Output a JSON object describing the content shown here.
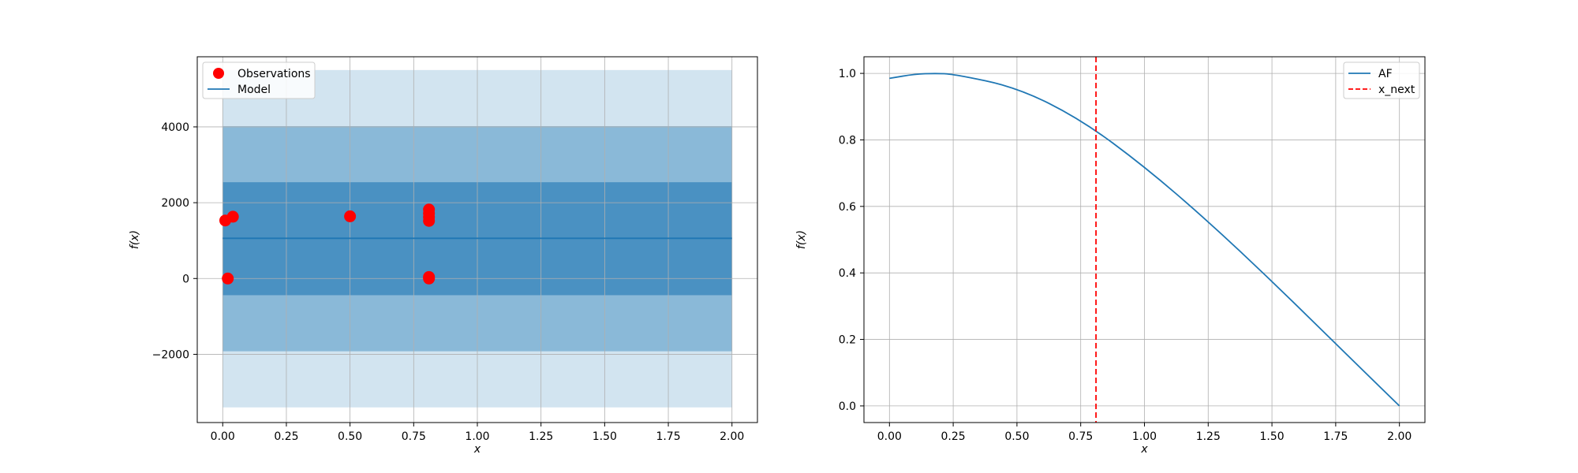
{
  "chart_data": [
    {
      "type": "scatter",
      "title": "",
      "xlabel": "x",
      "ylabel": "f(x)",
      "xlim": [
        -0.1,
        2.1
      ],
      "ylim": [
        -3800,
        5850
      ],
      "xticks": [
        0.0,
        0.25,
        0.5,
        0.75,
        1.0,
        1.25,
        1.5,
        1.75,
        2.0
      ],
      "xtick_labels": [
        "0.00",
        "0.25",
        "0.50",
        "0.75",
        "1.00",
        "1.25",
        "1.50",
        "1.75",
        "2.00"
      ],
      "yticks": [
        -2000,
        0,
        2000,
        4000
      ],
      "ytick_labels": [
        "−2000",
        "0",
        "2000",
        "4000"
      ],
      "grid": true,
      "legend_position": "top-left",
      "legend": [
        "Observations",
        "Model"
      ],
      "series": [
        {
          "name": "Observations",
          "kind": "scatter",
          "color": "#ff0000",
          "points": [
            [
              0.01,
              1530
            ],
            [
              0.04,
              1630
            ],
            [
              0.02,
              0
            ],
            [
              0.5,
              1640
            ],
            [
              0.81,
              1820
            ],
            [
              0.81,
              1720
            ],
            [
              0.81,
              1620
            ],
            [
              0.81,
              1520
            ],
            [
              0.81,
              40
            ],
            [
              0.81,
              0
            ]
          ]
        },
        {
          "name": "Model",
          "kind": "line",
          "color": "#1f77b4",
          "x": [
            0.0,
            2.0
          ],
          "y": [
            1060,
            1060
          ]
        }
      ],
      "bands": [
        {
          "x": [
            0.0,
            2.0
          ],
          "lower": -3400,
          "upper": 5500,
          "color": "#1f77b4",
          "opacity": 0.2
        },
        {
          "x": [
            0.0,
            2.0
          ],
          "lower": -1920,
          "upper": 4020,
          "color": "#1f77b4",
          "opacity": 0.4
        },
        {
          "x": [
            0.0,
            2.0
          ],
          "lower": -440,
          "upper": 2540,
          "color": "#1f77b4",
          "opacity": 0.6
        }
      ]
    },
    {
      "type": "line",
      "title": "",
      "xlabel": "x",
      "ylabel": "f(x)",
      "xlim": [
        -0.1,
        2.1
      ],
      "ylim": [
        -0.05,
        1.05
      ],
      "xticks": [
        0.0,
        0.25,
        0.5,
        0.75,
        1.0,
        1.25,
        1.5,
        1.75,
        2.0
      ],
      "xtick_labels": [
        "0.00",
        "0.25",
        "0.50",
        "0.75",
        "1.00",
        "1.25",
        "1.50",
        "1.75",
        "2.00"
      ],
      "yticks": [
        0.0,
        0.2,
        0.4,
        0.6,
        0.8,
        1.0
      ],
      "ytick_labels": [
        "0.0",
        "0.2",
        "0.4",
        "0.6",
        "0.8",
        "1.0"
      ],
      "grid": true,
      "legend_position": "top-right",
      "legend": [
        "AF",
        "x_next"
      ],
      "series": [
        {
          "name": "AF",
          "kind": "line",
          "color": "#1f77b4",
          "x": [
            0.0,
            0.1,
            0.18,
            0.25,
            0.5,
            0.75,
            1.0,
            1.25,
            1.5,
            1.75,
            2.0
          ],
          "y": [
            0.985,
            0.998,
            1.0,
            0.998,
            0.958,
            0.862,
            0.72,
            0.555,
            0.375,
            0.187,
            0.0
          ]
        },
        {
          "name": "x_next",
          "kind": "vline",
          "color": "#ff0000",
          "dash": "dashed",
          "x": 0.81
        }
      ]
    }
  ]
}
